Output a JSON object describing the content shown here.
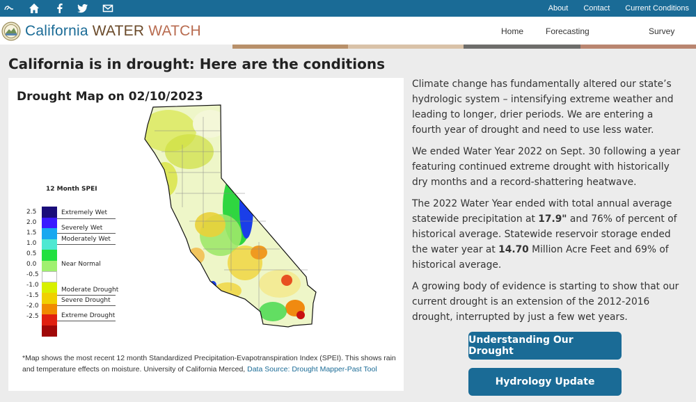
{
  "topbar": {
    "icons": [
      "ca-gov-logo-icon",
      "home-icon",
      "facebook-icon",
      "twitter-icon",
      "email-icon"
    ],
    "links": [
      "About",
      "Contact",
      "Current Conditions"
    ]
  },
  "brand": {
    "part1": "California",
    "part2": "WATER",
    "part3": "WATCH"
  },
  "nav": [
    "Home",
    "Forecasting",
    "Survey"
  ],
  "colors": {
    "primary": "#1a6b96",
    "band": [
      "#b8906a",
      "#d9c2a8",
      "#6e6d6b",
      "#b98570"
    ]
  },
  "page": {
    "heading": "California is in drought: Here are the conditions"
  },
  "map": {
    "title": "Drought Map on 02/10/2023",
    "legend_title": "12 Month SPEI",
    "legend_values": [
      "2.5",
      "2.0",
      "1.5",
      "1.0",
      "0.5",
      "0.0",
      "-0.5",
      "-1.0",
      "-1.5",
      "-2.0",
      "-2.5"
    ],
    "legend_colors": [
      "#1a0d7a",
      "#3a1aff",
      "#18a8f0",
      "#4ee8d2",
      "#22e040",
      "#a0f070",
      "#ffffff",
      "#d8f000",
      "#f0d000",
      "#f08a00",
      "#e02010",
      "#a00808"
    ],
    "legend_labels": [
      "Extremely Wet",
      "Severely Wet",
      "Moderately Wet",
      "Near Normal",
      "Moderate Drought",
      "Severe Drought",
      "Extreme Drought"
    ],
    "footnote": "*Map shows the most recent 12 month Standardized Precipitation-Evapotranspiration Index (SPEI). This shows rain and temperature effects on moisture. University of California Merced, ",
    "footnote_link": "Data Source: Drought Mapper-Past Tool"
  },
  "right": {
    "p1": "Climate change has fundamentally altered our state’s hydrologic system – intensifying extreme weather and leading to longer, drier periods. We are entering a fourth year of drought and need to use less water.",
    "p2": "We ended Water Year 2022 on Sept. 30 following a year featuring continued extreme drought with historically dry months and a record-shattering heatwave.",
    "p3_a": "The 2022 Water Year ended with total annual average statewide precipitation at ",
    "p3_b": "17.9\"",
    "p3_c": " and 76% of percent of historical average. Statewide reservoir storage ended the water year at ",
    "p3_d": "14.70",
    "p3_e": " Million Acre Feet and 69% of historical average.",
    "p4": "A growing body of evidence is starting to show that our current drought is an extension of the 2012-2016 drought, interrupted by just a few wet years."
  },
  "buttons": {
    "understanding": "Understanding Our Drought",
    "hydrology": "Hydrology Update"
  }
}
